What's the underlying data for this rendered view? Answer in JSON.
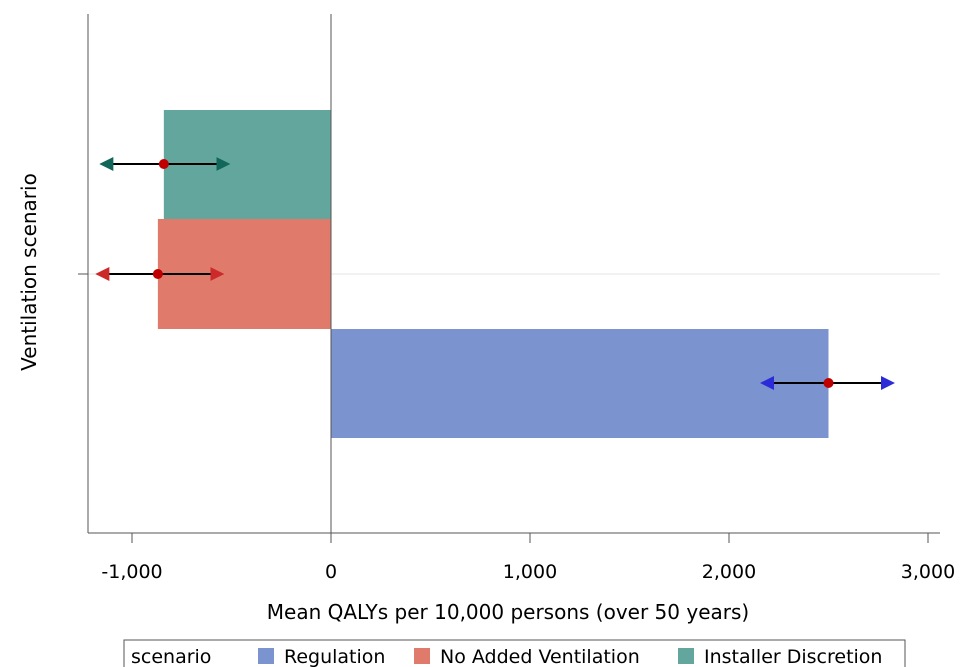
{
  "chart_data": {
    "type": "bar",
    "orientation": "horizontal",
    "xlabel": "Mean QALYs per 10,000 persons (over 50 years)",
    "ylabel": "Ventilation scenario",
    "xlim": [
      -1200,
      3050
    ],
    "xticks": [
      -1000,
      0,
      1000,
      2000,
      3000
    ],
    "xtick_labels": [
      "-1,000",
      "0",
      "1,000",
      "2,000",
      "3,000"
    ],
    "grid": false,
    "legend_title": "scenario",
    "legend_position": "bottom",
    "series": [
      {
        "name": "Regulation",
        "value": 2500,
        "error_low": 2170,
        "error_high": 2820,
        "color": "#7b93cf",
        "error_color": "#2b2bd8"
      },
      {
        "name": "No Added Ventilation",
        "value": -870,
        "error_low": -1170,
        "error_high": -550,
        "color": "#e07b6c",
        "error_color": "#cc2a2a"
      },
      {
        "name": "Installer Discretion",
        "value": -840,
        "error_low": -1150,
        "error_high": -520,
        "color": "#62a69d",
        "error_color": "#12675a"
      }
    ]
  }
}
